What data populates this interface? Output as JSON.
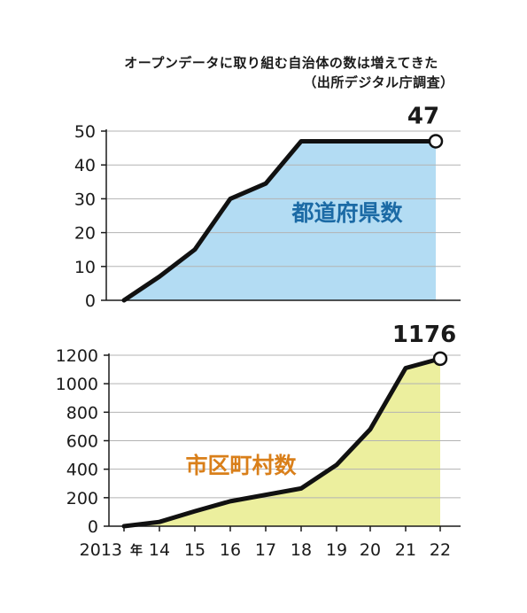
{
  "title_line1": "オープンデータに取り組む自治体の数は増えてきた",
  "title_line2": "（出所デジタル庁調査）",
  "x_year_suffix": "年",
  "chart_data": [
    {
      "type": "area",
      "series": [
        {
          "name": "都道府県数",
          "color": "#b3dcf3",
          "values": [
            0,
            7,
            15,
            30,
            34.5,
            47,
            47,
            47,
            47,
            47
          ]
        }
      ],
      "x": [
        "2013",
        "14",
        "15",
        "16",
        "17",
        "18",
        "19",
        "20",
        "21",
        "22"
      ],
      "ylim": [
        0,
        50
      ],
      "yticks": [
        "50",
        "40",
        "30",
        "20",
        "10",
        "0"
      ],
      "label_color": "#1b6aa5",
      "end_label": "47",
      "grid": true
    },
    {
      "type": "area",
      "series": [
        {
          "name": "市区町村数",
          "color": "#ecef9e",
          "values": [
            0,
            30,
            105,
            175,
            220,
            265,
            430,
            680,
            1110,
            1176
          ]
        }
      ],
      "x": [
        "2013",
        "14",
        "15",
        "16",
        "17",
        "18",
        "19",
        "20",
        "21",
        "22"
      ],
      "ylim": [
        0,
        1200
      ],
      "yticks": [
        "1200",
        "1000",
        "800",
        "600",
        "400",
        "200",
        "0"
      ],
      "label_color": "#d97f1a",
      "end_label": "1176",
      "grid": true
    }
  ]
}
